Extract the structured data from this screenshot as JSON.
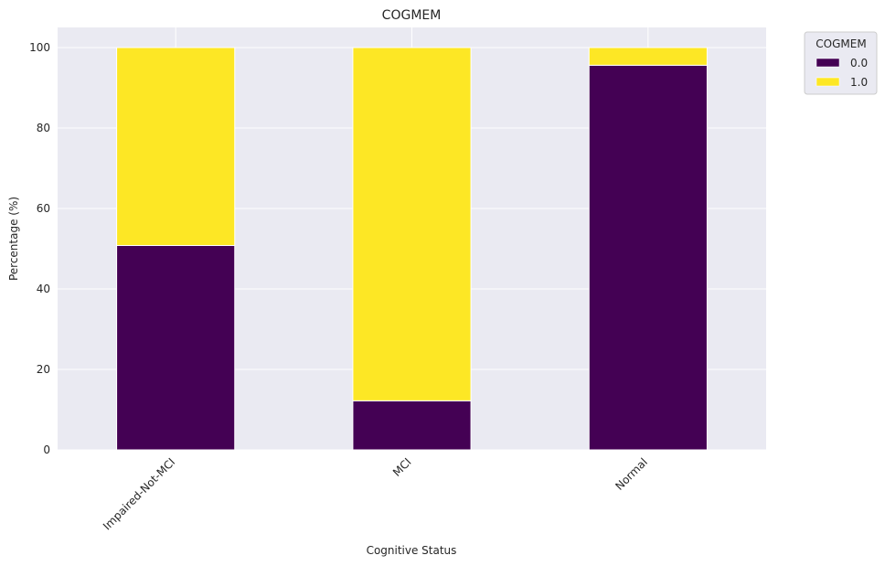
{
  "chart_data": {
    "type": "bar",
    "stacked": true,
    "title": "COGMEM",
    "xlabel": "Cognitive Status",
    "ylabel": "Percentage (%)",
    "categories": [
      "Impaired-Not-MCI",
      "MCI",
      "Normal"
    ],
    "series": [
      {
        "name": "0.0",
        "values": [
          50.8,
          12.2,
          95.6
        ],
        "color": "#440154"
      },
      {
        "name": "1.0",
        "values": [
          49.2,
          87.8,
          4.4
        ],
        "color": "#fde725"
      }
    ],
    "ylim": [
      0,
      105
    ],
    "yticks": [
      0,
      20,
      40,
      60,
      80,
      100
    ],
    "grid": true,
    "legend": {
      "title": "COGMEM",
      "placement": "outside top-right"
    },
    "background": "#eaeaf2"
  }
}
